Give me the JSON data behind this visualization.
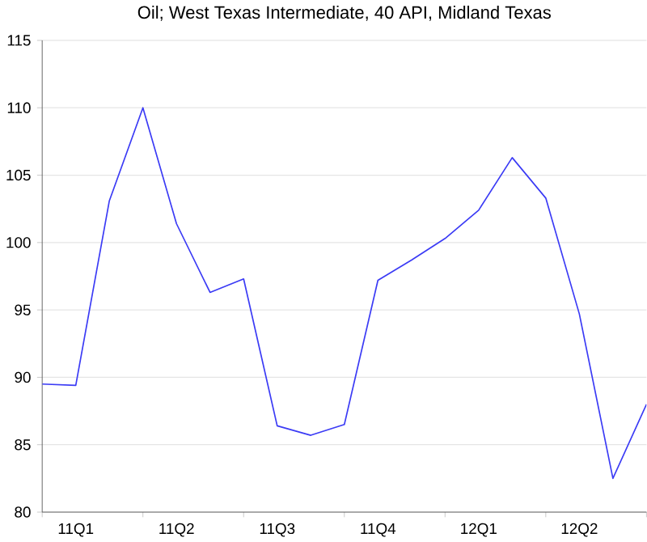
{
  "chart_data": {
    "type": "line",
    "title": "Oil; West Texas Intermediate, 40 API, Midland Texas",
    "categories": [
      null,
      "11Q1",
      null,
      null,
      "11Q2",
      null,
      null,
      "11Q3",
      null,
      null,
      "11Q4",
      null,
      null,
      "12Q1",
      null,
      null,
      "12Q2",
      null,
      null
    ],
    "series": [
      {
        "color": "#3b3bf5",
        "values": [
          89.5,
          89.4,
          103.1,
          110.0,
          101.4,
          96.3,
          97.3,
          86.4,
          85.7,
          86.5,
          97.2,
          98.7,
          100.3,
          102.4,
          106.3,
          103.3,
          94.7,
          82.5,
          88.0
        ]
      }
    ],
    "ylim": [
      80,
      115
    ],
    "yticks": [
      80,
      85,
      90,
      95,
      100,
      105,
      110,
      115
    ],
    "grid": "y"
  }
}
